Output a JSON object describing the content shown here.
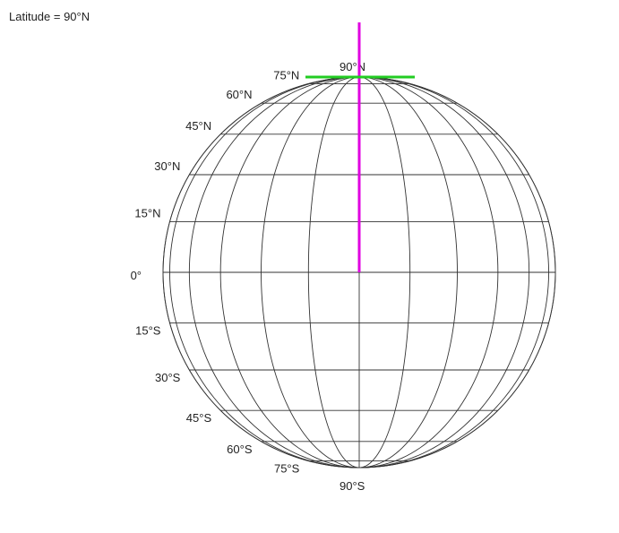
{
  "readout": "Latitude = 90°N",
  "latitude_deg": 90,
  "graticule": {
    "latitudes_deg": [
      -75,
      -60,
      -45,
      -30,
      -15,
      0,
      15,
      30,
      45,
      60,
      75
    ],
    "meridian_offsets_deg": [
      -90,
      -75,
      -60,
      -45,
      -30,
      -15,
      0,
      15,
      30,
      45,
      60,
      75,
      90
    ]
  },
  "labels": [
    {
      "text": "90°N",
      "lat": 90
    },
    {
      "text": "75°N",
      "lat": 75
    },
    {
      "text": "60°N",
      "lat": 60
    },
    {
      "text": "45°N",
      "lat": 45
    },
    {
      "text": "30°N",
      "lat": 30
    },
    {
      "text": "15°N",
      "lat": 15
    },
    {
      "text": "0°",
      "lat": 0
    },
    {
      "text": "15°S",
      "lat": -15
    },
    {
      "text": "30°S",
      "lat": -30
    },
    {
      "text": "45°S",
      "lat": -45
    },
    {
      "text": "60°S",
      "lat": -60
    },
    {
      "text": "75°S",
      "lat": -75
    },
    {
      "text": "90°S",
      "lat": -90
    }
  ],
  "colors": {
    "grid": "#333333",
    "axis": "#e000e0",
    "tangent": "#22cc22"
  }
}
